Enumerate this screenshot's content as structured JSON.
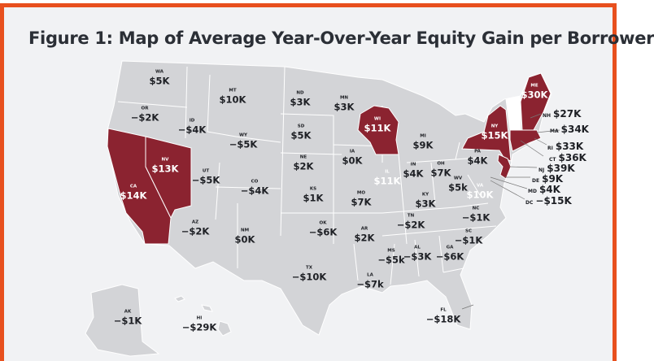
{
  "title": "Figure 1: Map of Average Year-Over-Year Equity Gain per Borrower",
  "colors": {
    "frame": "#e8501e",
    "background": "#f1f2f4",
    "state_default": "#d3d4d7",
    "state_highlight": "#8b2330",
    "border": "#ffffff"
  },
  "states": [
    {
      "abbr": "WA",
      "value": "$5K"
    },
    {
      "abbr": "MT",
      "value": "$10K"
    },
    {
      "abbr": "ND",
      "value": "$3K"
    },
    {
      "abbr": "MN",
      "value": "$3K"
    },
    {
      "abbr": "OR",
      "value": "−$2K"
    },
    {
      "abbr": "ID",
      "value": "−$4K"
    },
    {
      "abbr": "WY",
      "value": "−$5K"
    },
    {
      "abbr": "SD",
      "value": "$5K"
    },
    {
      "abbr": "NE",
      "value": "$2K"
    },
    {
      "abbr": "UT",
      "value": "−$5K"
    },
    {
      "abbr": "CO",
      "value": "−$4K"
    },
    {
      "abbr": "KS",
      "value": "$1K"
    },
    {
      "abbr": "NV",
      "value": "$13K",
      "highlighted": true
    },
    {
      "abbr": "CA",
      "value": "$14K",
      "highlighted": true
    },
    {
      "abbr": "AZ",
      "value": "−$2K"
    },
    {
      "abbr": "NM",
      "value": "$0K"
    },
    {
      "abbr": "OK",
      "value": "−$6K"
    },
    {
      "abbr": "TX",
      "value": "−$10K"
    },
    {
      "abbr": "AR",
      "value": "$2K"
    },
    {
      "abbr": "LA",
      "value": "−$7k"
    },
    {
      "abbr": "MS",
      "value": "−$5k"
    },
    {
      "abbr": "AL",
      "value": "−$3K"
    },
    {
      "abbr": "GA",
      "value": "−$6K"
    },
    {
      "abbr": "SC",
      "value": "−$1K"
    },
    {
      "abbr": "FL",
      "value": "−$18K"
    },
    {
      "abbr": "TN",
      "value": "−$2K"
    },
    {
      "abbr": "NC",
      "value": "−$1K"
    },
    {
      "abbr": "KY",
      "value": "$3K"
    },
    {
      "abbr": "WV",
      "value": "$5k"
    },
    {
      "abbr": "VA",
      "value": "$10K",
      "white": true
    },
    {
      "abbr": "OH",
      "value": "$7K"
    },
    {
      "abbr": "IN",
      "value": "$4K"
    },
    {
      "abbr": "IL",
      "value": "$11K",
      "white": true
    },
    {
      "abbr": "MO",
      "value": "$7K"
    },
    {
      "abbr": "IA",
      "value": "$0K"
    },
    {
      "abbr": "MI",
      "value": "$9K"
    },
    {
      "abbr": "WI",
      "value": "$11K",
      "highlighted": true
    },
    {
      "abbr": "NY",
      "value": "$15K",
      "highlighted": true
    },
    {
      "abbr": "ME",
      "value": "$30K",
      "highlighted": true
    },
    {
      "abbr": "PA",
      "value": "$4K"
    },
    {
      "abbr": "AK",
      "value": "−$1K"
    },
    {
      "abbr": "HI",
      "value": "−$29K"
    }
  ],
  "callouts": [
    {
      "abbr": "NH",
      "value": "$27K",
      "highlighted": true
    },
    {
      "abbr": "MA",
      "value": "$34K",
      "highlighted": true
    },
    {
      "abbr": "RI",
      "value": "$33K",
      "highlighted": true
    },
    {
      "abbr": "CT",
      "value": "$36K",
      "highlighted": true
    },
    {
      "abbr": "NJ",
      "value": "$39K",
      "highlighted": true
    },
    {
      "abbr": "DE",
      "value": "$9K"
    },
    {
      "abbr": "MD",
      "value": "$4K"
    },
    {
      "abbr": "DC",
      "value": "−$15K"
    }
  ]
}
